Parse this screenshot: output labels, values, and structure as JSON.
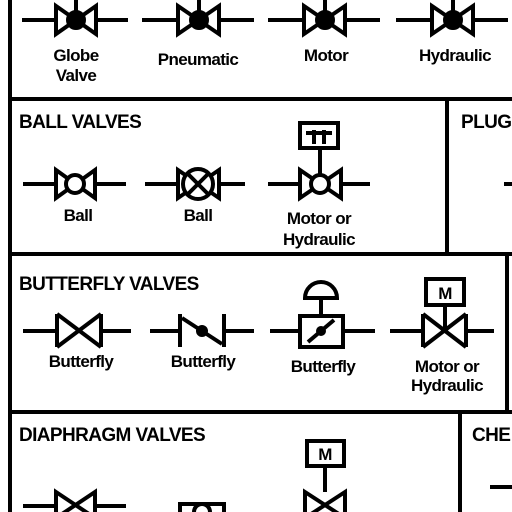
{
  "top_row": {
    "globe_label": [
      "Globe",
      "Valve"
    ],
    "pneumatic_label": "Pneumatic",
    "motor_label": "Motor",
    "hydraulic_label": "Hydraulic"
  },
  "ball_valves": {
    "title": "BALL VALVES",
    "ball_1_label": "Ball",
    "ball_2_label": "Ball",
    "motor_hydraulic_label": [
      "Motor or",
      "Hydraulic"
    ],
    "actuator_letter": ""
  },
  "plug_valves": {
    "title": "PLUG"
  },
  "butterfly_valves": {
    "title": "BUTTERFLY VALVES",
    "butterfly_1_label": "Butterfly",
    "butterfly_2_label": "Butterfly",
    "butterfly_3_label": "Butterfly",
    "motor_hydraulic_label": [
      "Motor or",
      "Hydraulic"
    ],
    "actuator_letter": "M"
  },
  "diaphragm_valves": {
    "title": "DIAPHRAGM VALVES",
    "actuator_letter": "M"
  },
  "check_valves": {
    "title": "CHE"
  }
}
